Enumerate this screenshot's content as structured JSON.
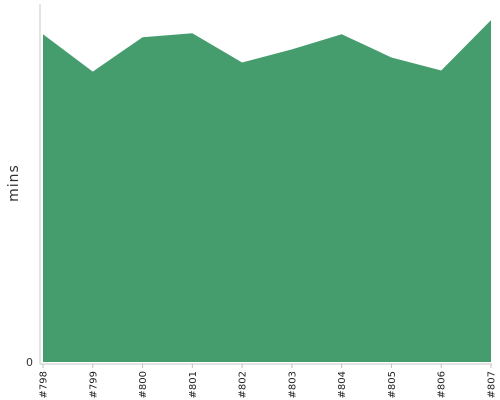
{
  "chart_data": {
    "type": "area",
    "title": "",
    "xlabel": "",
    "ylabel": "mins",
    "categories": [
      "#798",
      "#799",
      "#800",
      "#801",
      "#802",
      "#803",
      "#804",
      "#805",
      "#806",
      "#807"
    ],
    "series": [
      {
        "values": [
          32.5,
          28.8,
          32.2,
          32.6,
          29.7,
          31.0,
          32.5,
          30.2,
          28.9,
          33.9
        ]
      }
    ],
    "y_tick_labels": [
      "0"
    ],
    "ylim": [
      0,
      35.5
    ],
    "grid": false,
    "legend": "none",
    "colors": {
      "area": "#459d6d",
      "axis": "#c8c8c8",
      "tick": "#c0c0c0"
    }
  }
}
